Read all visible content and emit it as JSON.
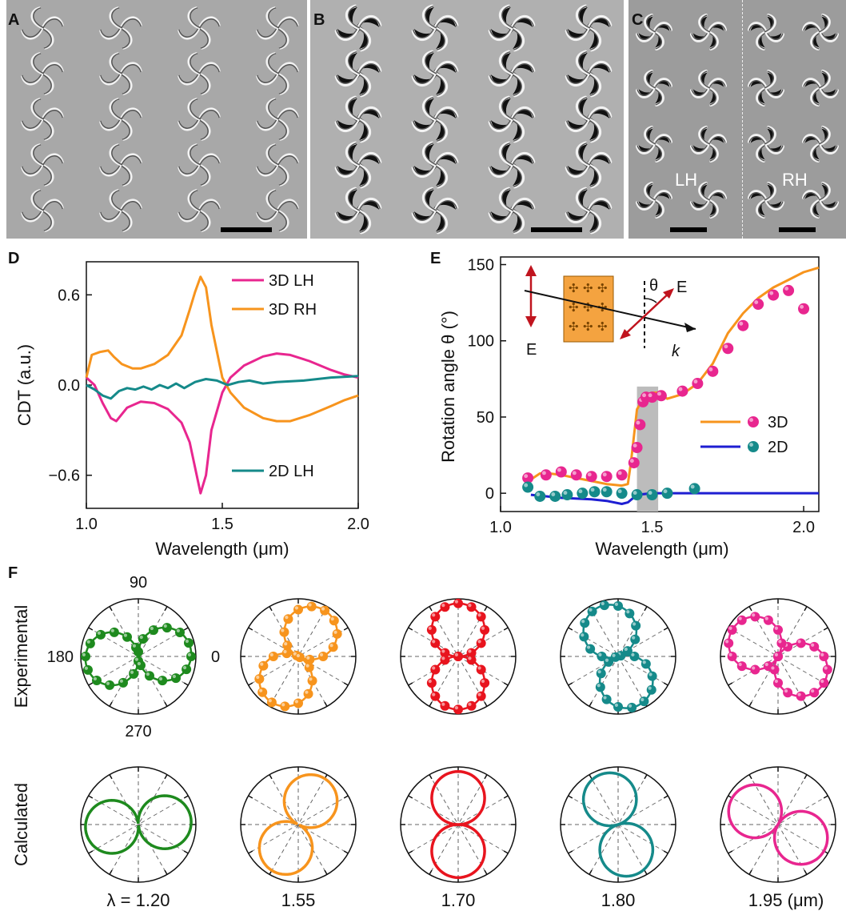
{
  "panels": {
    "A": {
      "label": "A"
    },
    "B": {
      "label": "B"
    },
    "C": {
      "label": "C",
      "lh": "LH",
      "rh": "RH"
    },
    "D": {
      "label": "D"
    },
    "E": {
      "label": "E"
    },
    "F": {
      "label": "F"
    }
  },
  "colors": {
    "lh3d": "#e8268f",
    "rh3d": "#f7941d",
    "lh2d": "#158a8a",
    "blue2d": "#1e1ed2",
    "green": "#1e8a1e",
    "red": "#e8141e",
    "gray": "#bcbcbc"
  },
  "chart_data": [
    {
      "type": "line",
      "panel": "D",
      "xlabel": "Wavelength (μm)",
      "ylabel": "CDT (a.u.)",
      "xlim": [
        1.0,
        2.0
      ],
      "ylim": [
        -0.82,
        0.82
      ],
      "xticks": [
        "1.0",
        "1.5",
        "2.0"
      ],
      "yticks": [
        "0.6",
        "0.0",
        "−0.6"
      ],
      "ytick_values": [
        0.6,
        0.0,
        -0.6
      ],
      "series": [
        {
          "name": "3D LH",
          "color": "#e8268f",
          "x": [
            1.0,
            1.03,
            1.06,
            1.09,
            1.11,
            1.15,
            1.2,
            1.25,
            1.3,
            1.35,
            1.38,
            1.4,
            1.42,
            1.44,
            1.46,
            1.5,
            1.53,
            1.58,
            1.65,
            1.7,
            1.75,
            1.82,
            1.9,
            1.95,
            2.0
          ],
          "y": [
            0.05,
            0.0,
            -0.12,
            -0.22,
            -0.24,
            -0.15,
            -0.11,
            -0.12,
            -0.16,
            -0.25,
            -0.38,
            -0.55,
            -0.72,
            -0.6,
            -0.3,
            -0.05,
            0.05,
            0.13,
            0.19,
            0.21,
            0.2,
            0.16,
            0.1,
            0.07,
            0.05
          ]
        },
        {
          "name": "3D RH",
          "color": "#f7941d",
          "x": [
            1.0,
            1.02,
            1.05,
            1.08,
            1.1,
            1.13,
            1.17,
            1.2,
            1.25,
            1.3,
            1.35,
            1.38,
            1.4,
            1.42,
            1.44,
            1.46,
            1.5,
            1.53,
            1.58,
            1.65,
            1.7,
            1.75,
            1.82,
            1.9,
            1.95,
            2.0
          ],
          "y": [
            0.05,
            0.2,
            0.22,
            0.23,
            0.19,
            0.14,
            0.11,
            0.11,
            0.14,
            0.2,
            0.33,
            0.5,
            0.62,
            0.72,
            0.65,
            0.4,
            0.05,
            -0.05,
            -0.15,
            -0.22,
            -0.24,
            -0.24,
            -0.2,
            -0.14,
            -0.1,
            -0.07
          ]
        },
        {
          "name": "2D LH",
          "color": "#158a8a",
          "x": [
            1.0,
            1.03,
            1.06,
            1.09,
            1.12,
            1.15,
            1.18,
            1.21,
            1.24,
            1.27,
            1.3,
            1.33,
            1.36,
            1.4,
            1.44,
            1.48,
            1.52,
            1.56,
            1.6,
            1.65,
            1.7,
            1.8,
            1.9,
            2.0
          ],
          "y": [
            0.0,
            -0.03,
            -0.07,
            -0.09,
            -0.04,
            -0.02,
            -0.03,
            -0.01,
            -0.03,
            0.0,
            -0.02,
            0.01,
            -0.02,
            0.02,
            0.04,
            0.03,
            0.0,
            0.02,
            0.03,
            0.01,
            0.02,
            0.03,
            0.05,
            0.06
          ]
        }
      ],
      "legend": "right"
    },
    {
      "type": "line+scatter",
      "panel": "E",
      "xlabel": "Wavelength (μm)",
      "ylabel": "Rotation angle θ (°)",
      "xlim": [
        1.0,
        2.05
      ],
      "ylim": [
        -12,
        155
      ],
      "xticks": [
        "1.0",
        "1.5",
        "2.0"
      ],
      "yticks": [
        "0",
        "50",
        "100",
        "150"
      ],
      "ytick_values": [
        0,
        50,
        100,
        150
      ],
      "shaded_region": [
        1.45,
        1.52
      ],
      "series": [
        {
          "name": "3D",
          "kind": "line",
          "color": "#f7941d",
          "x": [
            1.1,
            1.13,
            1.16,
            1.2,
            1.25,
            1.3,
            1.35,
            1.4,
            1.42,
            1.43,
            1.45,
            1.47,
            1.5,
            1.52,
            1.55,
            1.6,
            1.65,
            1.7,
            1.75,
            1.8,
            1.85,
            1.9,
            1.95,
            2.0,
            2.05
          ],
          "y": [
            9,
            13,
            13,
            12,
            10,
            8,
            6,
            5,
            6,
            20,
            55,
            62,
            66,
            66,
            62,
            65,
            72,
            85,
            105,
            118,
            128,
            135,
            140,
            145,
            148
          ]
        },
        {
          "name": "2D",
          "kind": "line",
          "color": "#1e1ed2",
          "x": [
            1.1,
            1.15,
            1.2,
            1.3,
            1.35,
            1.4,
            1.42,
            1.45,
            1.5,
            1.55,
            1.6,
            1.7,
            1.8,
            1.9,
            2.0,
            2.05
          ],
          "y": [
            -1,
            -2,
            -3,
            -4,
            -5,
            -7,
            -6,
            -1,
            0,
            0,
            0,
            0,
            0,
            0,
            0,
            0
          ]
        },
        {
          "name": "3D",
          "kind": "scatter",
          "color": "#e8268f",
          "x": [
            1.09,
            1.15,
            1.2,
            1.25,
            1.3,
            1.35,
            1.4,
            1.44,
            1.45,
            1.46,
            1.47,
            1.48,
            1.5,
            1.53,
            1.6,
            1.65,
            1.7,
            1.75,
            1.8,
            1.85,
            1.9,
            1.95,
            2.0
          ],
          "y": [
            10,
            12,
            14,
            12,
            11,
            11,
            12,
            20,
            30,
            45,
            60,
            63,
            63,
            64,
            67,
            72,
            80,
            95,
            110,
            124,
            130,
            133,
            121
          ]
        },
        {
          "name": "2D",
          "kind": "scatter",
          "color": "#158a8a",
          "x": [
            1.09,
            1.13,
            1.18,
            1.22,
            1.27,
            1.31,
            1.35,
            1.4,
            1.45,
            1.5,
            1.55,
            1.64
          ],
          "y": [
            4,
            -2,
            -2,
            -1,
            0,
            1,
            1,
            0,
            -1,
            -1,
            0,
            3
          ]
        }
      ],
      "inset": {
        "e_left": "E",
        "e_right": "E",
        "theta": "θ",
        "k": "k"
      },
      "legend": "right"
    }
  ],
  "polar": {
    "row_labels": {
      "experimental": "Experimental",
      "calculated": "Calculated"
    },
    "angle_labels": {
      "top": "90",
      "left": "180",
      "right": "0",
      "bottom": "270"
    },
    "columns": [
      {
        "caption": "λ = 1.20",
        "color": "#1e8a1e",
        "angle_deg": 5
      },
      {
        "caption": "1.55",
        "color": "#f7941d",
        "angle_deg": 62
      },
      {
        "caption": "1.70",
        "color": "#e8141e",
        "angle_deg": 90
      },
      {
        "caption": "1.80",
        "color": "#158a8a",
        "angle_deg": 108
      },
      {
        "caption": "1.95 (μm)",
        "color": "#e8268f",
        "angle_deg": 150
      }
    ]
  }
}
